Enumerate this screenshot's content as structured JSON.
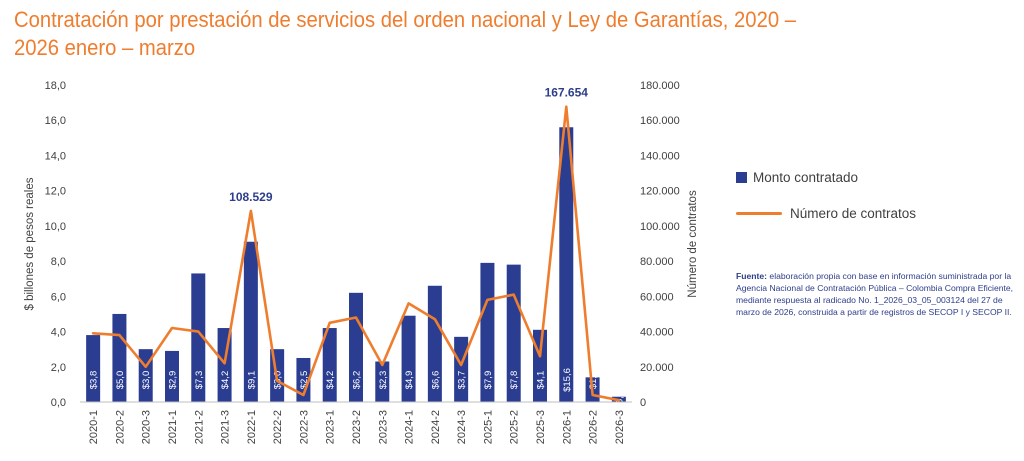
{
  "title_line1": "Contratación por prestación de servicios del orden nacional y Ley de Garantías, 2020 –",
  "title_line2": "2026 enero – marzo",
  "legend": {
    "bar_label": "Monto contratado",
    "line_label": "Número de contratos"
  },
  "source": {
    "label": "Fuente:",
    "text": "elaboración propia con base en información suministrada por la Agencia Nacional de Contratación Pública – Colombia Compra Eficiente, mediante respuesta al radicado No. 1_2026_03_05_003124 del 27 de marzo de 2026, construida a partir de registros de SECOP I y SECOP II."
  },
  "colors": {
    "bar": "#2b3d91",
    "line": "#ef7d2e",
    "title": "#ef7d2e",
    "peak_label": "#2e3e8a"
  },
  "chart_data": {
    "type": "bar",
    "categories": [
      "2020-1",
      "2020-2",
      "2020-3",
      "2021-1",
      "2021-2",
      "2021-3",
      "2022-1",
      "2022-2",
      "2022-3",
      "2023-1",
      "2023-2",
      "2023-3",
      "2024-1",
      "2024-2",
      "2024-3",
      "2025-1",
      "2025-2",
      "2025-3",
      "2026-1",
      "2026-2",
      "2026-3"
    ],
    "ylabel": "$ billones de pesos reales",
    "y2label": "Número de contratos",
    "ylim": [
      0,
      18
    ],
    "y2lim": [
      0,
      180000
    ],
    "yticks": [
      "0,0",
      "2,0",
      "4,0",
      "6,0",
      "8,0",
      "10,0",
      "12,0",
      "14,0",
      "16,0",
      "18,0"
    ],
    "y2ticks": [
      "0",
      "20.000",
      "40.000",
      "60.000",
      "80.000",
      "100.000",
      "120.000",
      "140.000",
      "160.000",
      "180.000"
    ],
    "series": [
      {
        "name": "Monto contratado",
        "type": "bar",
        "axis": "left",
        "values": [
          3.8,
          5.0,
          3.0,
          2.9,
          7.3,
          4.2,
          9.1,
          3.0,
          2.5,
          4.2,
          6.2,
          2.3,
          4.9,
          6.6,
          3.7,
          7.9,
          7.8,
          4.1,
          15.6,
          1.4,
          0.3
        ],
        "labels": [
          "$3,8",
          "$5,0",
          "$3,0",
          "$2,9",
          "$7,3",
          "$4,2",
          "$9,1",
          "$3,0",
          "$2,5",
          "$4,2",
          "$6,2",
          "$2,3",
          "$4,9",
          "$6,6",
          "$3,7",
          "$7,9",
          "$7,8",
          "$4,1",
          "$15,6",
          "$1,4",
          "$0,3"
        ]
      },
      {
        "name": "Número de contratos",
        "type": "line",
        "axis": "right",
        "values": [
          39000,
          38000,
          20000,
          42000,
          40000,
          22000,
          108529,
          12000,
          4000,
          45000,
          48000,
          21000,
          56000,
          47000,
          21000,
          58000,
          61000,
          26000,
          167654,
          4000,
          1000
        ]
      }
    ],
    "annotations": [
      {
        "category": "2022-1",
        "text": "108.529"
      },
      {
        "category": "2026-1",
        "text": "167.654"
      }
    ],
    "grid": false,
    "legend_position": "right"
  }
}
